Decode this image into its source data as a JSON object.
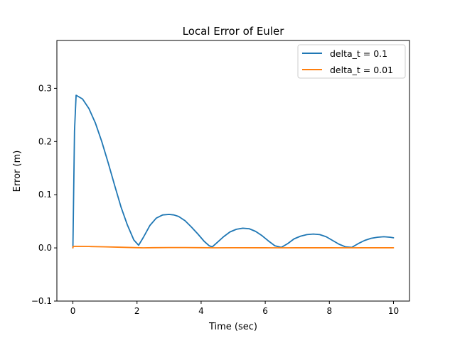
{
  "chart_data": {
    "type": "line",
    "title": "Local Error of Euler",
    "xlabel": "Time (sec)",
    "ylabel": "Error (m)",
    "xlim": [
      -0.5,
      10.5
    ],
    "ylim": [
      -0.1,
      0.39
    ],
    "xticks": [
      0,
      2,
      4,
      6,
      8,
      10
    ],
    "xtick_labels": [
      "0",
      "2",
      "4",
      "6",
      "8",
      "10"
    ],
    "yticks": [
      -0.1,
      0.0,
      0.1,
      0.2,
      0.3
    ],
    "ytick_labels": [
      "−0.1",
      "0.0",
      "0.1",
      "0.2",
      "0.3"
    ],
    "grid": false,
    "legend_position": "top-right",
    "series": [
      {
        "name": "delta_t = 0.1",
        "color": "#1f77b4",
        "x": [
          0,
          0.05,
          0.1,
          0.3,
          0.5,
          0.7,
          0.9,
          1.1,
          1.3,
          1.5,
          1.7,
          1.9,
          2.05,
          2.2,
          2.4,
          2.6,
          2.8,
          3.0,
          3.15,
          3.3,
          3.5,
          3.7,
          3.9,
          4.1,
          4.25,
          4.35,
          4.5,
          4.7,
          4.9,
          5.1,
          5.3,
          5.5,
          5.7,
          5.9,
          6.1,
          6.3,
          6.5,
          6.7,
          6.9,
          7.1,
          7.3,
          7.5,
          7.7,
          7.9,
          8.1,
          8.3,
          8.5,
          8.7,
          8.9,
          9.1,
          9.3,
          9.5,
          9.7,
          9.9,
          10.0
        ],
        "y": [
          0.0,
          0.22,
          0.287,
          0.28,
          0.262,
          0.235,
          0.2,
          0.16,
          0.118,
          0.077,
          0.043,
          0.015,
          0.005,
          0.02,
          0.042,
          0.056,
          0.062,
          0.063,
          0.062,
          0.059,
          0.051,
          0.039,
          0.026,
          0.012,
          0.004,
          0.002,
          0.01,
          0.021,
          0.03,
          0.035,
          0.037,
          0.036,
          0.031,
          0.023,
          0.013,
          0.004,
          0.001,
          0.008,
          0.017,
          0.022,
          0.025,
          0.026,
          0.025,
          0.021,
          0.014,
          0.007,
          0.002,
          0.001,
          0.008,
          0.014,
          0.018,
          0.02,
          0.021,
          0.02,
          0.019
        ]
      },
      {
        "name": "delta_t = 0.01",
        "color": "#ff7f0e",
        "x": [
          0,
          0.01,
          0.05,
          0.5,
          1.0,
          1.5,
          2.0,
          2.2,
          2.5,
          3.0,
          3.5,
          4.0,
          4.4,
          5.0,
          6.0,
          6.5,
          7.0,
          8.0,
          8.7,
          9.0,
          10.0
        ],
        "y": [
          0.0,
          0.0028,
          0.0029,
          0.0026,
          0.002,
          0.0012,
          0.0004,
          0.0001,
          0.0004,
          0.0006,
          0.0006,
          0.0004,
          0.0001,
          0.0003,
          0.0002,
          0.0001,
          0.0002,
          0.0002,
          0.0001,
          0.0002,
          0.0002
        ]
      }
    ]
  }
}
